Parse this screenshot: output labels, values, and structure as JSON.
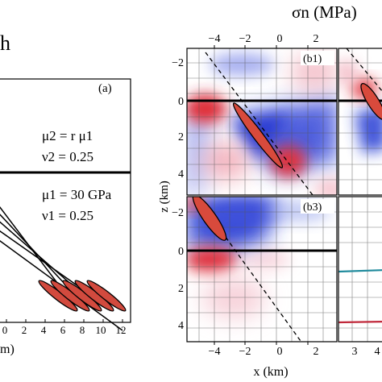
{
  "figure": {
    "colorbar_title": "σn (MPa)",
    "left_title_fragment": "h",
    "panel_a": {
      "label": "(a)",
      "upper_modulus": "μ2 = r μ1",
      "upper_poisson": "ν2 = 0.25",
      "lower_modulus": "μ1 = 30 GPa",
      "lower_poisson": "ν1 = 0.25",
      "x_ticks": [
        "0",
        "2",
        "4",
        "6",
        "8",
        "10",
        "12"
      ],
      "x_label_fragment": "m)"
    },
    "panels": {
      "b1": {
        "label": "(b1)"
      },
      "b3": {
        "label": "(b3)"
      }
    },
    "x_top_ticks": [
      "−4",
      "−2",
      "0",
      "2"
    ],
    "x_bottom_ticks": [
      "−4",
      "−2",
      "0",
      "2"
    ],
    "z_ticks_b1": [
      "−2",
      "0",
      "2",
      "4"
    ],
    "z_ticks_b3": [
      "−2",
      "0",
      "2",
      "4"
    ],
    "x_axis_label": "x (km)",
    "z_axis_label": "z (km)",
    "right_partial_x_ticks": [
      "3",
      "4"
    ],
    "icons": {
      "fault_slip": "red-ellipse-icon"
    }
  }
}
